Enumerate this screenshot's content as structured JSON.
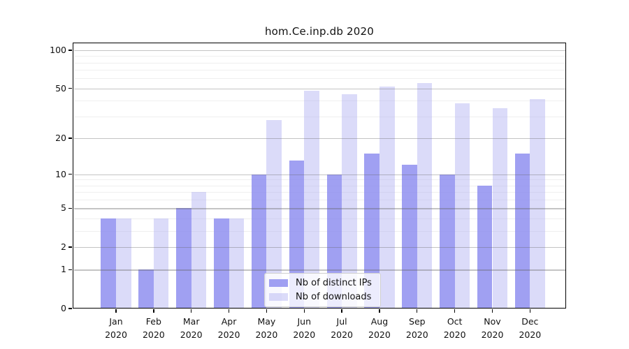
{
  "chart_data": {
    "type": "bar",
    "title": "hom.Ce.inp.db 2020",
    "y_scale": "log1p",
    "ylim": [
      0,
      115
    ],
    "grid": "on",
    "legend_position": "lower center",
    "categories": [
      {
        "month": "Jan",
        "year": "2020"
      },
      {
        "month": "Feb",
        "year": "2020"
      },
      {
        "month": "Mar",
        "year": "2020"
      },
      {
        "month": "Apr",
        "year": "2020"
      },
      {
        "month": "May",
        "year": "2020"
      },
      {
        "month": "Jun",
        "year": "2020"
      },
      {
        "month": "Jul",
        "year": "2020"
      },
      {
        "month": "Aug",
        "year": "2020"
      },
      {
        "month": "Sep",
        "year": "2020"
      },
      {
        "month": "Oct",
        "year": "2020"
      },
      {
        "month": "Nov",
        "year": "2020"
      },
      {
        "month": "Dec",
        "year": "2020"
      }
    ],
    "series": [
      {
        "name": "Nb of distinct IPs",
        "color": "rgba(136,136,239,0.8)",
        "color_hex_equiv": "#9a9af2",
        "values": [
          4,
          1,
          5,
          4,
          10,
          13,
          10,
          15,
          12,
          10,
          8,
          15
        ]
      },
      {
        "name": "Nb of downloads",
        "color": "rgba(175,175,242,0.45)",
        "color_hex_equiv": "#dbdbf8",
        "values": [
          4,
          4,
          7,
          4,
          28,
          48,
          45,
          52,
          55,
          38,
          35,
          41
        ]
      }
    ],
    "y_ticks": [
      0,
      1,
      2,
      5,
      10,
      20,
      50,
      100
    ],
    "y_minor_gridlines": [
      3,
      4,
      6,
      7,
      8,
      9,
      30,
      40,
      60,
      70,
      80,
      90
    ],
    "xlabel": "",
    "ylabel": ""
  }
}
